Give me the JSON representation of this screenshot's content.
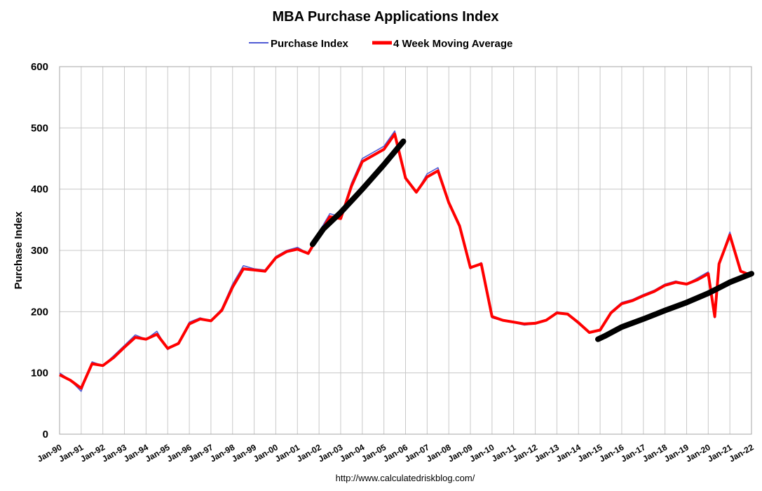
{
  "chart_data": {
    "type": "line",
    "title": "MBA Purchase Applications Index",
    "ylabel": "Purchase Index",
    "xlabel": "",
    "source_text": "http://www.calculatedriskblog.com/",
    "ylim": [
      0,
      600
    ],
    "xlim": [
      1990,
      2022
    ],
    "y_ticks": [
      0,
      100,
      200,
      300,
      400,
      500,
      600
    ],
    "x_tick_labels": [
      "Jan-90",
      "Jan-91",
      "Jan-92",
      "Jan-93",
      "Jan-94",
      "Jan-95",
      "Jan-96",
      "Jan-97",
      "Jan-98",
      "Jan-99",
      "Jan-00",
      "Jan-01",
      "Jan-02",
      "Jan-03",
      "Jan-04",
      "Jan-05",
      "Jan-06",
      "Jan-07",
      "Jan-08",
      "Jan-09",
      "Jan-10",
      "Jan-11",
      "Jan-12",
      "Jan-13",
      "Jan-14",
      "Jan-15",
      "Jan-16",
      "Jan-17",
      "Jan-18",
      "Jan-19",
      "Jan-20",
      "Jan-21",
      "Jan-22"
    ],
    "grid": true,
    "legend_position": "top-center",
    "colors": {
      "purchase_index": "#4f5bd5",
      "moving_average": "#ff0000",
      "trend": "#000000",
      "grid": "#c8c8c8"
    },
    "series": [
      {
        "name": "Purchase Index",
        "x": [
          1990.0,
          1990.5,
          1991.0,
          1991.5,
          1992.0,
          1992.5,
          1993.0,
          1993.5,
          1994.0,
          1994.5,
          1995.0,
          1995.5,
          1996.0,
          1996.5,
          1997.0,
          1997.5,
          1998.0,
          1998.5,
          1999.0,
          1999.5,
          2000.0,
          2000.5,
          2001.0,
          2001.5,
          2002.0,
          2002.5,
          2003.0,
          2003.5,
          2004.0,
          2004.5,
          2005.0,
          2005.5,
          2006.0,
          2006.5,
          2007.0,
          2007.5,
          2008.0,
          2008.5,
          2009.0,
          2009.5,
          2010.0,
          2010.5,
          2011.0,
          2011.5,
          2012.0,
          2012.5,
          2013.0,
          2013.5,
          2014.0,
          2014.5,
          2015.0,
          2015.5,
          2016.0,
          2016.5,
          2017.0,
          2017.5,
          2018.0,
          2018.5,
          2019.0,
          2019.5,
          2020.0,
          2020.3,
          2020.5,
          2021.0,
          2021.5,
          2021.8
        ],
        "y": [
          100,
          88,
          70,
          118,
          112,
          128,
          145,
          162,
          155,
          168,
          138,
          150,
          183,
          190,
          185,
          205,
          245,
          275,
          270,
          268,
          290,
          300,
          305,
          295,
          330,
          360,
          355,
          410,
          450,
          460,
          470,
          495,
          420,
          395,
          425,
          435,
          380,
          340,
          270,
          280,
          190,
          185,
          182,
          178,
          180,
          185,
          200,
          195,
          180,
          165,
          170,
          200,
          215,
          220,
          228,
          235,
          245,
          250,
          245,
          255,
          265,
          190,
          280,
          330,
          265,
          262
        ]
      },
      {
        "name": "4 Week Moving Average",
        "x": [
          1990.0,
          1990.5,
          1991.0,
          1991.5,
          1992.0,
          1992.5,
          1993.0,
          1993.5,
          1994.0,
          1994.5,
          1995.0,
          1995.5,
          1996.0,
          1996.5,
          1997.0,
          1997.5,
          1998.0,
          1998.5,
          1999.0,
          1999.5,
          2000.0,
          2000.5,
          2001.0,
          2001.5,
          2002.0,
          2002.5,
          2003.0,
          2003.5,
          2004.0,
          2004.5,
          2005.0,
          2005.5,
          2006.0,
          2006.5,
          2007.0,
          2007.5,
          2008.0,
          2008.5,
          2009.0,
          2009.5,
          2010.0,
          2010.5,
          2011.0,
          2011.5,
          2012.0,
          2012.5,
          2013.0,
          2013.5,
          2014.0,
          2014.5,
          2015.0,
          2015.5,
          2016.0,
          2016.5,
          2017.0,
          2017.5,
          2018.0,
          2018.5,
          2019.0,
          2019.5,
          2020.0,
          2020.3,
          2020.5,
          2021.0,
          2021.5,
          2021.8
        ],
        "y": [
          97,
          88,
          75,
          115,
          112,
          125,
          142,
          158,
          155,
          163,
          140,
          148,
          180,
          188,
          185,
          202,
          240,
          270,
          268,
          266,
          288,
          298,
          302,
          295,
          325,
          355,
          352,
          405,
          445,
          455,
          465,
          490,
          418,
          395,
          420,
          430,
          378,
          340,
          272,
          278,
          192,
          186,
          183,
          180,
          181,
          186,
          198,
          196,
          182,
          166,
          170,
          198,
          213,
          218,
          226,
          233,
          243,
          248,
          245,
          252,
          262,
          192,
          278,
          325,
          266,
          262
        ]
      }
    ],
    "trend_lines": [
      {
        "x": [
          2001.7,
          2002.2,
          2003.0,
          2004.0,
          2005.0,
          2005.9
        ],
        "y": [
          310,
          335,
          362,
          400,
          440,
          478
        ]
      },
      {
        "x": [
          2014.9,
          2015.2,
          2016.0,
          2017.0,
          2018.0,
          2019.0,
          2020.0,
          2021.0,
          2022.0
        ],
        "y": [
          155,
          160,
          175,
          188,
          202,
          215,
          230,
          248,
          262
        ]
      }
    ]
  }
}
